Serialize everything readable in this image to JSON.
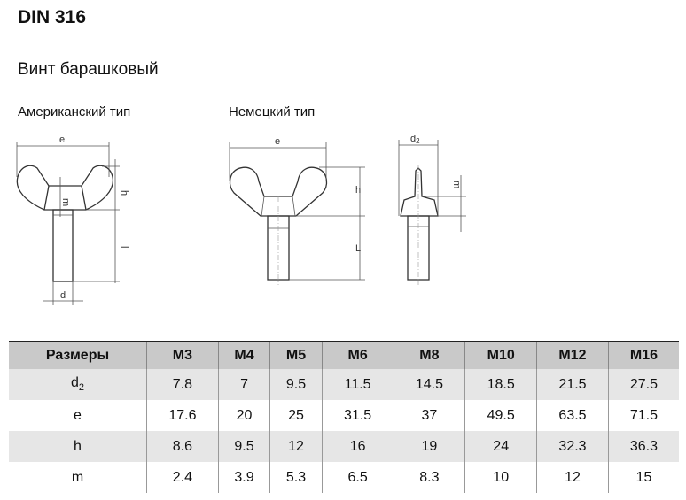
{
  "title": "DIN 316",
  "subtitle": "Винт барашковый",
  "drawings": {
    "american": {
      "label": "Американский тип",
      "dims": {
        "e": "e",
        "h": "h",
        "m": "m",
        "l": "l",
        "d": "d"
      }
    },
    "german": {
      "label": "Немецкий тип",
      "dims": {
        "e": "e",
        "h": "h",
        "L": "L",
        "d2": "d",
        "d2_sub": "2",
        "m": "m"
      }
    }
  },
  "table": {
    "header": [
      "Размеры",
      "M3",
      "M4",
      "M5",
      "M6",
      "M8",
      "M10",
      "M12",
      "M16"
    ],
    "rows": [
      {
        "label": "d",
        "sub": "2",
        "values": [
          "7.8",
          "7",
          "9.5",
          "11.5",
          "14.5",
          "18.5",
          "21.5",
          "27.5"
        ]
      },
      {
        "label": "e",
        "sub": "",
        "values": [
          "17.6",
          "20",
          "25",
          "31.5",
          "37",
          "49.5",
          "63.5",
          "71.5"
        ]
      },
      {
        "label": "h",
        "sub": "",
        "values": [
          "8.6",
          "9.5",
          "12",
          "16",
          "19",
          "24",
          "32.3",
          "36.3"
        ]
      },
      {
        "label": "m",
        "sub": "",
        "values": [
          "2.4",
          "3.9",
          "5.3",
          "6.5",
          "8.3",
          "10",
          "12",
          "15"
        ]
      }
    ]
  }
}
